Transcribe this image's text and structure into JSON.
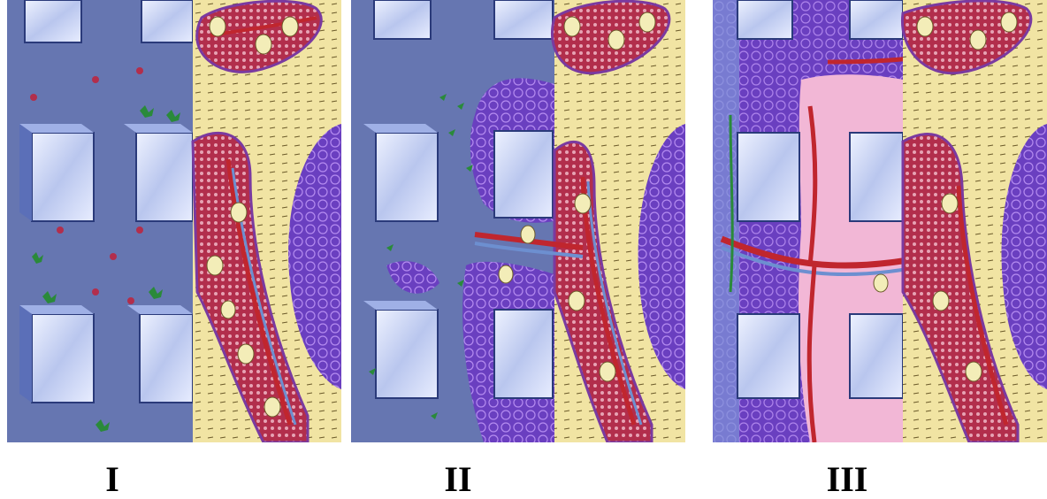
{
  "panels": [
    {
      "stage_label": "I"
    },
    {
      "stage_label": "II"
    },
    {
      "stage_label": "III"
    }
  ],
  "colors": {
    "scaffold_blue": "#7f95d8",
    "scaffold_face": "#c9d2f1",
    "bone_yellow": "#f1e4a3",
    "marrow_red": "#b22e4c",
    "vessel_red": "#c0262e",
    "vessel_blue": "#6d8fd0",
    "cell_purple": "#6a3fc0",
    "tissue_pink": "#f2b7d6",
    "cell_green": "#2a8a3a"
  }
}
